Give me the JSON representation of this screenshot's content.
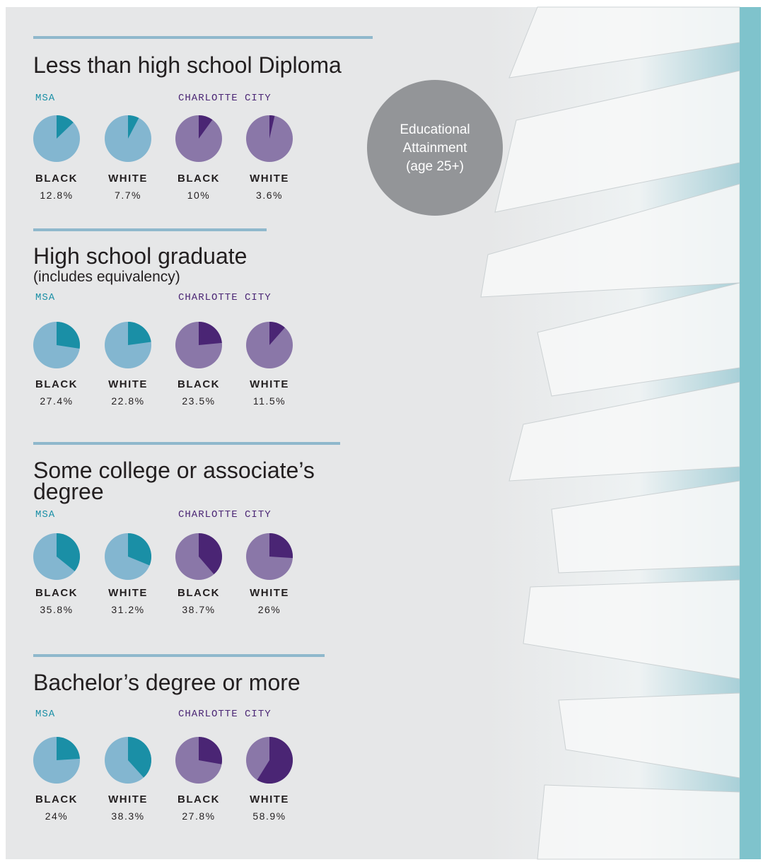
{
  "badge": "Educational Attainment (age 25+)",
  "chart_data": [
    {
      "type": "pie",
      "title": "Less than high school Diploma",
      "groups": [
        {
          "name": "MSA",
          "color": "#1a8fa6",
          "base_color": "#83b6d0",
          "items": [
            {
              "label": "BLACK",
              "value": 12.8,
              "value_label": "12.8%"
            },
            {
              "label": "WHITE",
              "value": 7.7,
              "value_label": "7.7%"
            }
          ]
        },
        {
          "name": "CHARLOTTE CITY",
          "color": "#4a2574",
          "base_color": "#8a77a8",
          "items": [
            {
              "label": "BLACK",
              "value": 10,
              "value_label": "10%"
            },
            {
              "label": "WHITE",
              "value": 3.6,
              "value_label": "3.6%"
            }
          ]
        }
      ]
    },
    {
      "type": "pie",
      "title": "High school graduate",
      "subtitle": "(includes equivalency)",
      "groups": [
        {
          "name": "MSA",
          "color": "#1a8fa6",
          "base_color": "#83b6d0",
          "items": [
            {
              "label": "BLACK",
              "value": 27.4,
              "value_label": "27.4%"
            },
            {
              "label": "WHITE",
              "value": 22.8,
              "value_label": "22.8%"
            }
          ]
        },
        {
          "name": "CHARLOTTE CITY",
          "color": "#4a2574",
          "base_color": "#8a77a8",
          "items": [
            {
              "label": "BLACK",
              "value": 23.5,
              "value_label": "23.5%"
            },
            {
              "label": "WHITE",
              "value": 11.5,
              "value_label": "11.5%"
            }
          ]
        }
      ]
    },
    {
      "type": "pie",
      "title": "Some college or associate’s degree",
      "groups": [
        {
          "name": "MSA",
          "color": "#1a8fa6",
          "base_color": "#83b6d0",
          "items": [
            {
              "label": "BLACK",
              "value": 35.8,
              "value_label": "35.8%"
            },
            {
              "label": "WHITE",
              "value": 31.2,
              "value_label": "31.2%"
            }
          ]
        },
        {
          "name": "CHARLOTTE CITY",
          "color": "#4a2574",
          "base_color": "#8a77a8",
          "items": [
            {
              "label": "BLACK",
              "value": 38.7,
              "value_label": "38.7%"
            },
            {
              "label": "WHITE",
              "value": 26,
              "value_label": "26%"
            }
          ]
        }
      ]
    },
    {
      "type": "pie",
      "title": "Bachelor’s degree or more",
      "groups": [
        {
          "name": "MSA",
          "color": "#1a8fa6",
          "base_color": "#83b6d0",
          "items": [
            {
              "label": "BLACK",
              "value": 24,
              "value_label": "24%"
            },
            {
              "label": "WHITE",
              "value": 38.3,
              "value_label": "38.3%"
            }
          ]
        },
        {
          "name": "CHARLOTTE CITY",
          "color": "#4a2574",
          "base_color": "#8a77a8",
          "items": [
            {
              "label": "BLACK",
              "value": 27.8,
              "value_label": "27.8%"
            },
            {
              "label": "WHITE",
              "value": 58.9,
              "value_label": "58.9%"
            }
          ]
        }
      ]
    }
  ]
}
